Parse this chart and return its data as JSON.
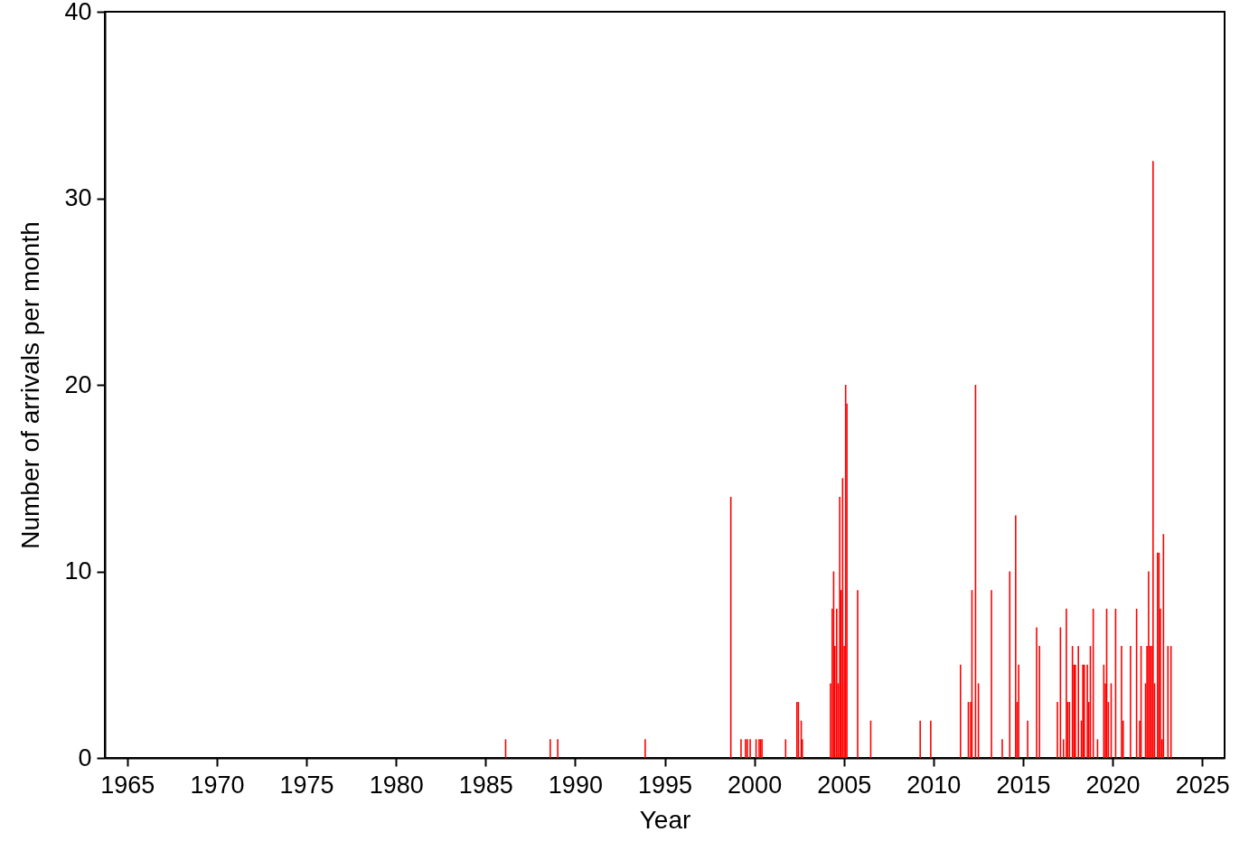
{
  "chart_data": {
    "type": "bar",
    "xlabel": "Year",
    "ylabel": "Number of arrivals per month",
    "x": [
      1986.12,
      1988.61,
      1989.03,
      1993.91,
      1998.69,
      1999.26,
      1999.51,
      1999.61,
      1999.77,
      2000.1,
      2000.27,
      2000.35,
      2000.43,
      2001.75,
      2002.38,
      2002.46,
      2002.62,
      2002.68,
      2004.25,
      2004.35,
      2004.43,
      2004.5,
      2004.6,
      2004.68,
      2004.77,
      2004.85,
      2004.93,
      2005.02,
      2005.1,
      2005.17,
      2005.77,
      2006.5,
      2009.26,
      2009.85,
      2011.51,
      2011.95,
      2012.08,
      2012.15,
      2012.35,
      2012.51,
      2013.24,
      2013.84,
      2014.26,
      2014.59,
      2014.67,
      2014.76,
      2015.26,
      2015.76,
      2015.92,
      2016.92,
      2017.09,
      2017.26,
      2017.42,
      2017.49,
      2017.59,
      2017.76,
      2017.84,
      2017.92,
      2018.09,
      2018.26,
      2018.34,
      2018.42,
      2018.59,
      2018.67,
      2018.76,
      2018.92,
      2019.16,
      2019.51,
      2019.6,
      2019.67,
      2019.76,
      2019.92,
      2020.17,
      2020.5,
      2020.59,
      2021.0,
      2021.34,
      2021.51,
      2021.59,
      2021.84,
      2021.92,
      2022.01,
      2022.09,
      2022.17,
      2022.26,
      2022.34,
      2022.51,
      2022.59,
      2022.67,
      2022.76,
      2022.84,
      2023.09,
      2023.26
    ],
    "series": [
      {
        "color": "#ff0000",
        "values": [
          1,
          1,
          1,
          1,
          14,
          1,
          1,
          1,
          1,
          1,
          1,
          1,
          1,
          1,
          3,
          3,
          2,
          1,
          4,
          8,
          10,
          6,
          8,
          4,
          14,
          9,
          15,
          6,
          20,
          19,
          9,
          2,
          2,
          2,
          5,
          3,
          3,
          9,
          20,
          4,
          9,
          1,
          10,
          13,
          3,
          5,
          2,
          7,
          6,
          3,
          7,
          1,
          8,
          3,
          3,
          6,
          5,
          5,
          6,
          2,
          5,
          5,
          5,
          3,
          6,
          8,
          1,
          5,
          4,
          8,
          3,
          4,
          8,
          6,
          2,
          6,
          8,
          2,
          6,
          4,
          6,
          10,
          6,
          6,
          32,
          4,
          11,
          11,
          8,
          1,
          12,
          6,
          6
        ]
      }
    ],
    "xlim": [
      1964,
      2026
    ],
    "xticks": [
      1965,
      1970,
      1975,
      1980,
      1985,
      1990,
      1995,
      2000,
      2005,
      2010,
      2015,
      2020,
      2025
    ],
    "ylim": [
      0,
      40
    ],
    "yticks": [
      0,
      10,
      20,
      30,
      40
    ],
    "grid": false
  }
}
